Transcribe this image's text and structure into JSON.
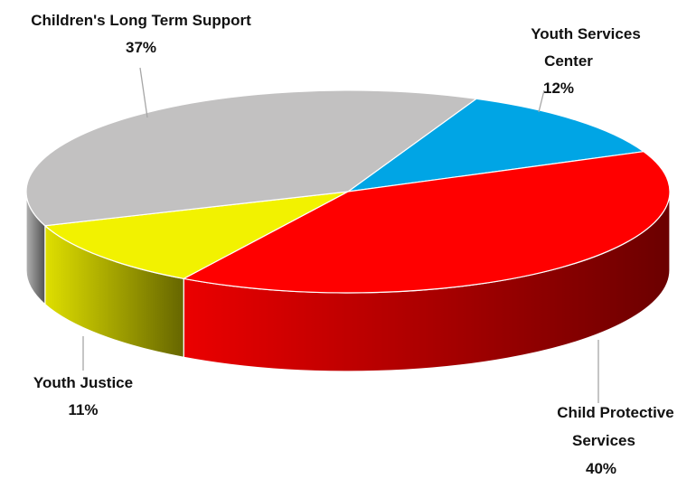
{
  "chart_data": {
    "type": "pie",
    "style": "3d",
    "series": [
      {
        "label_lines": [
          "Youth Services",
          "Center"
        ],
        "value": 12,
        "value_label": "12%",
        "color": "#00a5e5"
      },
      {
        "label_lines": [
          "Child Protective",
          "Services"
        ],
        "value": 40,
        "value_label": "40%",
        "color": "#ff0000"
      },
      {
        "label_lines": [
          "Youth Justice"
        ],
        "value": 11,
        "value_label": "11%",
        "color": "#f2f200"
      },
      {
        "label_lines": [
          "Children's Long Term Support"
        ],
        "value": 37,
        "value_label": "37%",
        "color": "#c2c1c1"
      }
    ]
  }
}
